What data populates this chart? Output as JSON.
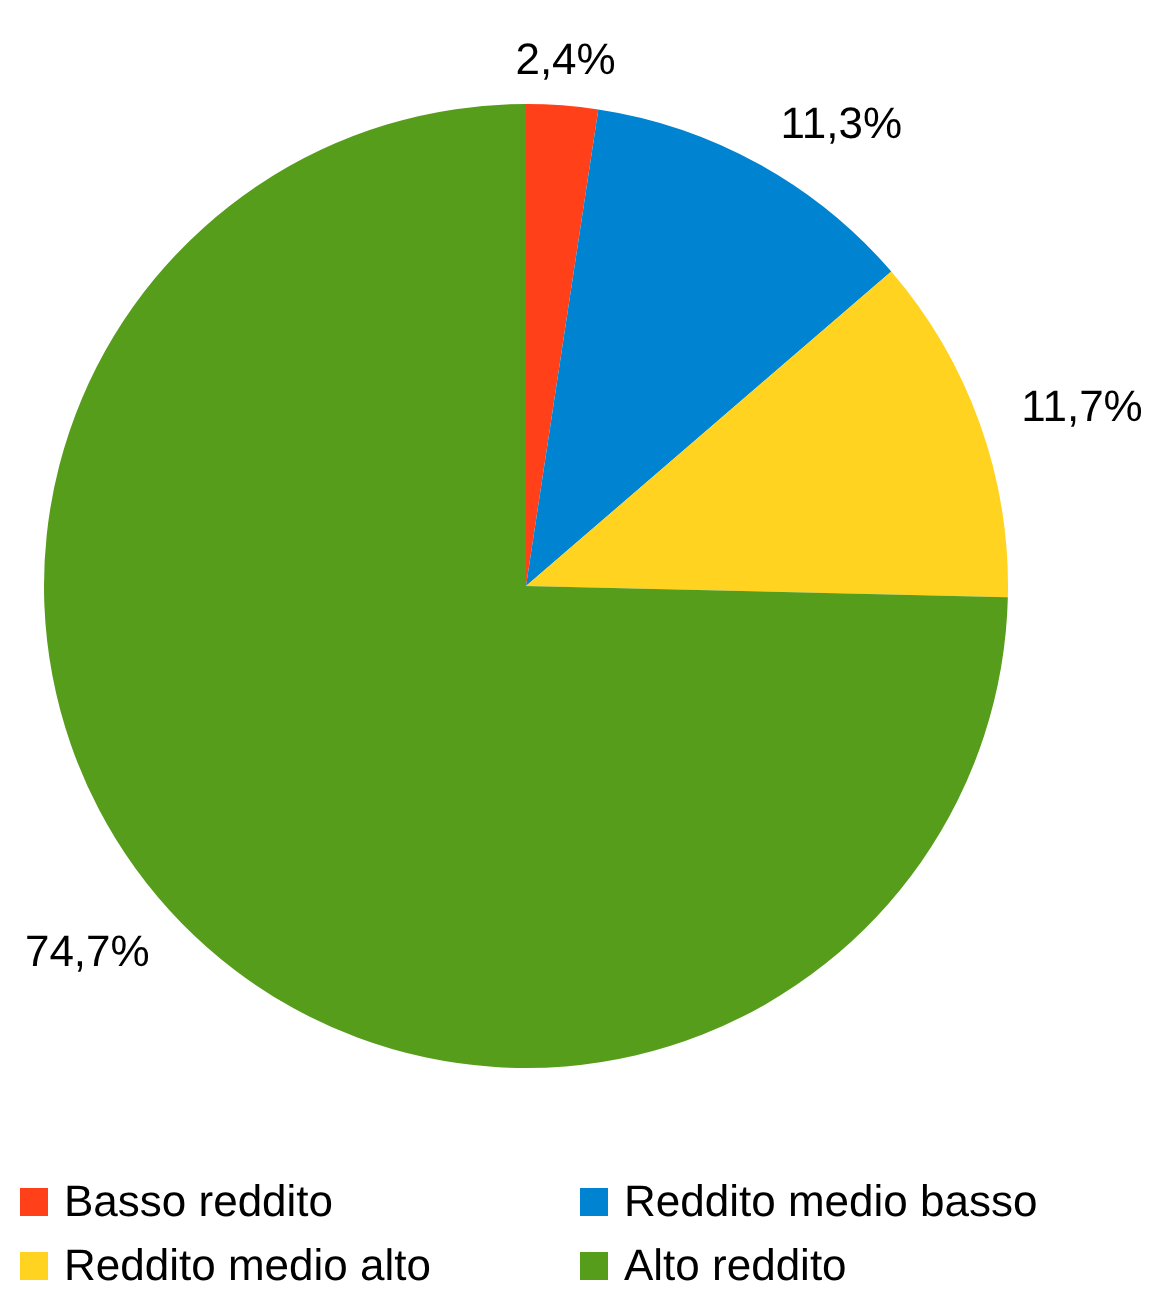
{
  "chart_data": {
    "type": "pie",
    "categories": [
      "Basso reddito",
      "Reddito medio basso",
      "Reddito medio alto",
      "Alto reddito"
    ],
    "values": [
      2.4,
      11.3,
      11.7,
      74.7
    ],
    "colors": [
      "#ff4018",
      "#0084d1",
      "#ffd320",
      "#579d1c"
    ],
    "value_labels": [
      "2,4%",
      "11,3%",
      "11,7%",
      "74,7%"
    ],
    "legend": "bottom"
  }
}
